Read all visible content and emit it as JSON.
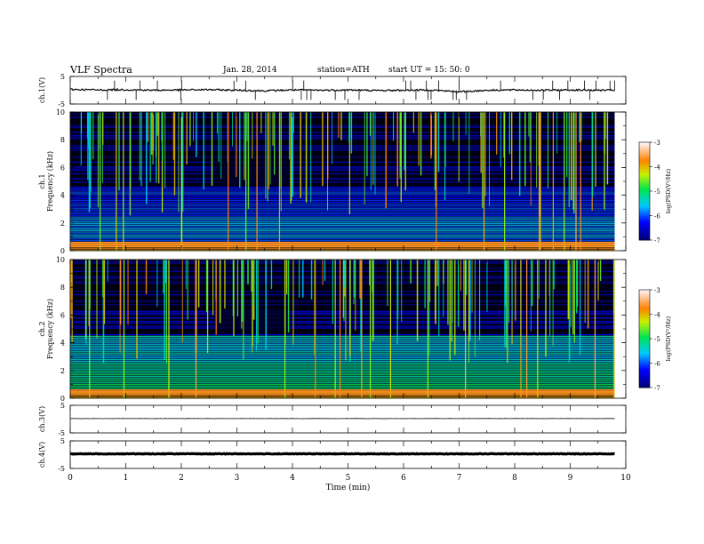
{
  "header": {
    "title": "VLF  Spectra",
    "date": "Jan. 28, 2014",
    "station": "station=ATH",
    "start": "start  UT  =   15: 50: 0"
  },
  "chart_data": [
    {
      "type": "line",
      "panel": "ch1-waveform",
      "ylabel": "ch.1(V)",
      "ylim": [
        -5,
        5
      ],
      "y_ticks": [
        "5",
        "-5"
      ],
      "x": [
        0,
        0.5,
        1,
        1.5,
        2,
        2.5,
        3,
        3.5,
        4,
        4.5,
        5,
        5.5,
        6,
        6.5,
        7,
        7.5,
        8,
        8.5,
        9,
        9.5,
        9.8
      ],
      "values": [
        0.3,
        0.1,
        0.2,
        0.0,
        0.1,
        0.2,
        0.0,
        -0.2,
        0.1,
        0.0,
        0.1,
        -0.1,
        0.0,
        0.1,
        -0.6,
        0.0,
        0.1,
        0.0,
        0.1,
        0.0,
        0.0
      ],
      "color": "#000000"
    },
    {
      "type": "heatmap",
      "panel": "ch1-spectrogram",
      "ylabel": "ch.1\nFrequency  (kHz)",
      "ylim": [
        0,
        10
      ],
      "y_ticks": [
        "0",
        "2",
        "4",
        "6",
        "8",
        "10"
      ],
      "colorbar": {
        "label": "log(PSD(V²/Hz)",
        "range": [
          -7,
          -3
        ],
        "ticks": [
          "-3",
          "-4",
          "-5",
          "-6",
          "-7"
        ]
      }
    },
    {
      "type": "heatmap",
      "panel": "ch2-spectrogram",
      "ylabel": "ch.2\nFrequency  (kHz)",
      "ylim": [
        0,
        10
      ],
      "y_ticks": [
        "0",
        "2",
        "4",
        "6",
        "8",
        "10"
      ],
      "colorbar": {
        "label": "log(PSD(V²/Hz)",
        "range": [
          -7,
          -3
        ],
        "ticks": [
          "-3",
          "-4",
          "-5",
          "-6",
          "-7"
        ]
      }
    },
    {
      "type": "line",
      "panel": "ch3-waveform",
      "ylabel": "ch.3(V)",
      "ylim": [
        -5,
        5
      ],
      "y_ticks": [
        "5",
        "-5"
      ],
      "x": [
        0,
        9.8
      ],
      "values": [
        0.2,
        0.2
      ],
      "color": "#000000"
    },
    {
      "type": "line",
      "panel": "ch4-waveform",
      "ylabel": "ch.4(V)",
      "ylim": [
        -5,
        5
      ],
      "y_ticks": [
        "5",
        "-5"
      ],
      "x": [
        0,
        9.8
      ],
      "values": [
        0.3,
        0.3
      ],
      "color": "#000000"
    }
  ],
  "x_axis": {
    "label": "Time  (min)",
    "range": [
      0,
      10
    ],
    "ticks": [
      "0",
      "1",
      "2",
      "3",
      "4",
      "5",
      "6",
      "7",
      "8",
      "9",
      "10"
    ]
  }
}
